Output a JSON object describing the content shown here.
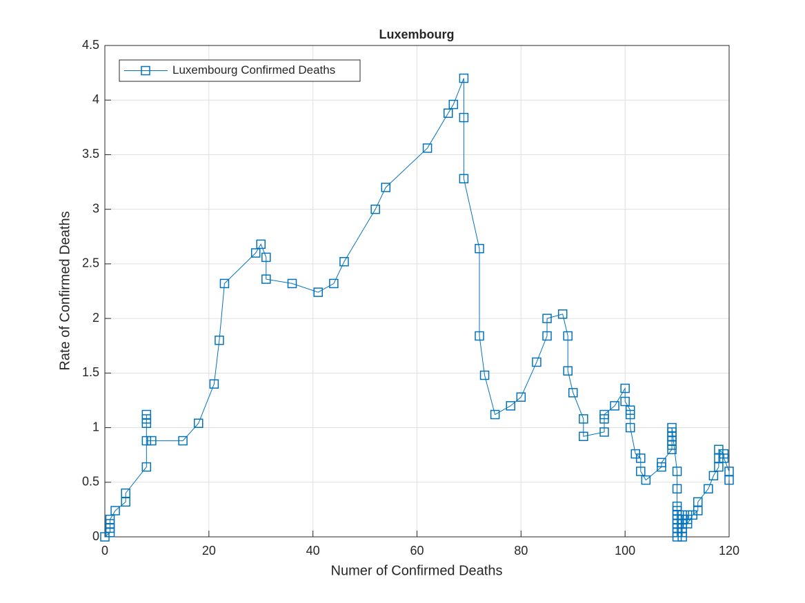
{
  "chart_data": {
    "type": "line",
    "title": "Luxembourg",
    "x_label": "Numer of Confirmed Deaths",
    "y_label": "Rate of Confirmed Deaths",
    "x": [
      0,
      1,
      1,
      1,
      1,
      2,
      4,
      4,
      8,
      8,
      8,
      8,
      8,
      9,
      15,
      18,
      21,
      22,
      23,
      29,
      30,
      31,
      31,
      36,
      41,
      44,
      46,
      52,
      54,
      62,
      66,
      67,
      69,
      69,
      69,
      72,
      72,
      73,
      75,
      78,
      80,
      83,
      85,
      85,
      88,
      89,
      89,
      90,
      92,
      92,
      96,
      96,
      96,
      98,
      100,
      100,
      101,
      101,
      101,
      102,
      103,
      103,
      104,
      107,
      107,
      109,
      109,
      109,
      109,
      109,
      109,
      110,
      110,
      110,
      110,
      110,
      110,
      110,
      110,
      110,
      110,
      111,
      111,
      111,
      111,
      111,
      111,
      112,
      112,
      112,
      113,
      114,
      114,
      116,
      117,
      118,
      118,
      118,
      119,
      119,
      120,
      120
    ],
    "series": [
      {
        "name": "Luxembourg Confirmed Deaths",
        "color": "#0072bd",
        "values": [
          0,
          0.04,
          0.08,
          0.12,
          0.16,
          0.24,
          0.32,
          0.4,
          0.64,
          1.04,
          1.08,
          1.12,
          0.88,
          0.88,
          0.88,
          1.04,
          1.4,
          1.8,
          2.32,
          2.6,
          2.68,
          2.56,
          2.36,
          2.32,
          2.24,
          2.32,
          2.52,
          3,
          3.2,
          3.56,
          3.88,
          3.96,
          4.2,
          3.84,
          3.28,
          2.64,
          1.84,
          1.48,
          1.12,
          1.2,
          1.28,
          1.6,
          1.84,
          2,
          2.04,
          1.84,
          1.52,
          1.32,
          1.08,
          0.92,
          0.96,
          1.08,
          1.12,
          1.2,
          1.36,
          1.24,
          1.16,
          1.12,
          1,
          0.76,
          0.72,
          0.6,
          0.52,
          0.64,
          0.68,
          0.8,
          0.84,
          0.88,
          0.92,
          0.96,
          1,
          0.6,
          0.44,
          0.28,
          0.24,
          0.2,
          0.16,
          0.12,
          0.08,
          0.04,
          0,
          0,
          0.04,
          0.08,
          0.12,
          0.16,
          0.2,
          0.2,
          0.16,
          0.12,
          0.2,
          0.24,
          0.32,
          0.44,
          0.56,
          0.64,
          0.72,
          0.8,
          0.76,
          0.72,
          0.6,
          0.52
        ]
      }
    ],
    "xlim": [
      0,
      120
    ],
    "xticks": [
      0,
      20,
      40,
      60,
      80,
      100,
      120
    ],
    "ylim": [
      0,
      4.5
    ],
    "yticks": [
      0,
      0.5,
      1,
      1.5,
      2,
      2.5,
      3,
      3.5,
      4,
      4.5
    ],
    "grid": true,
    "marker": "square",
    "legend": "northwest"
  }
}
